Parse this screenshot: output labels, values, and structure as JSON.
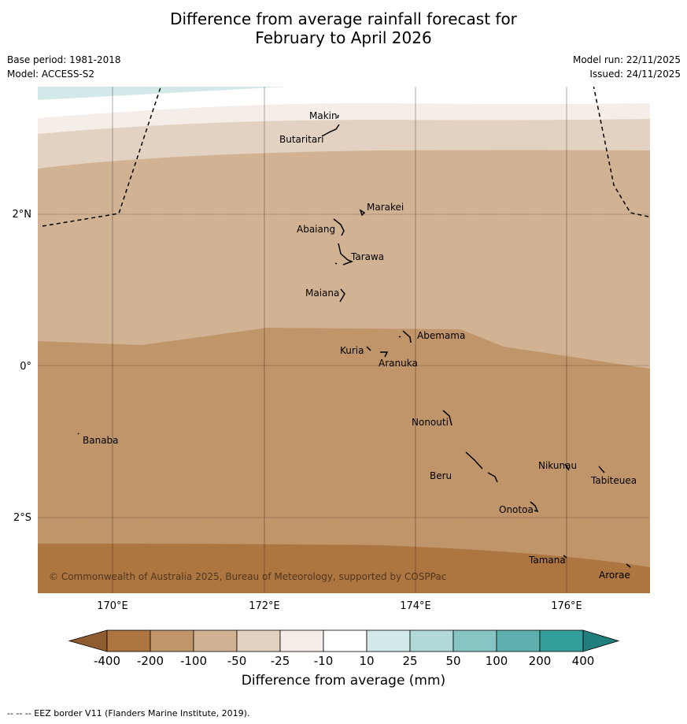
{
  "header": {
    "title_line1": "Difference from average rainfall forecast for",
    "title_line2": "February to April 2026",
    "base_period": "Base period: 1981-2018",
    "model": "Model: ACCESS-S2",
    "model_run": "Model run: 22/11/2025",
    "issued": "Issued: 24/11/2025"
  },
  "map": {
    "lon_ticks": [
      "170°E",
      "172°E",
      "174°E",
      "176°E"
    ],
    "lat_ticks": [
      "2°N",
      "0°",
      "2°S"
    ],
    "copyright": "© Commonwealth of Australia 2025, Bureau of Meteorology, supported by COSPPac",
    "islands": [
      "Makin",
      "Butaritari",
      "Marakei",
      "Abaiang",
      "Tarawa",
      "Maiana",
      "Abemama",
      "Kuria",
      "Aranuka",
      "Nonouti",
      "Banaba",
      "Beru",
      "Nikunau",
      "Tabiteuea",
      "Onotoa",
      "Tamana",
      "Arorae"
    ],
    "band_colors": [
      "#d3e8e8",
      "#f4ede8",
      "#e3d2c2",
      "#d1b293",
      "#c0956a",
      "#ad7641"
    ]
  },
  "colorbar": {
    "labels": [
      "-400",
      "-200",
      "-100",
      "-50",
      "-25",
      "-10",
      "10",
      "25",
      "50",
      "100",
      "200",
      "400"
    ],
    "colors": [
      "#ad7641",
      "#c0956a",
      "#d1b293",
      "#e3d2c2",
      "#f4ede8",
      "#ffffff",
      "#d3e8e8",
      "#b0d9d8",
      "#86c5c3",
      "#5db0ae",
      "#339d9a"
    ],
    "under_color": "#8e5c2e",
    "over_color": "#207f7c",
    "label": "Difference from average (mm)"
  },
  "footer": {
    "eez_note": "--  --  -- EEZ border V11 (Flanders Marine Institute, 2019)."
  }
}
